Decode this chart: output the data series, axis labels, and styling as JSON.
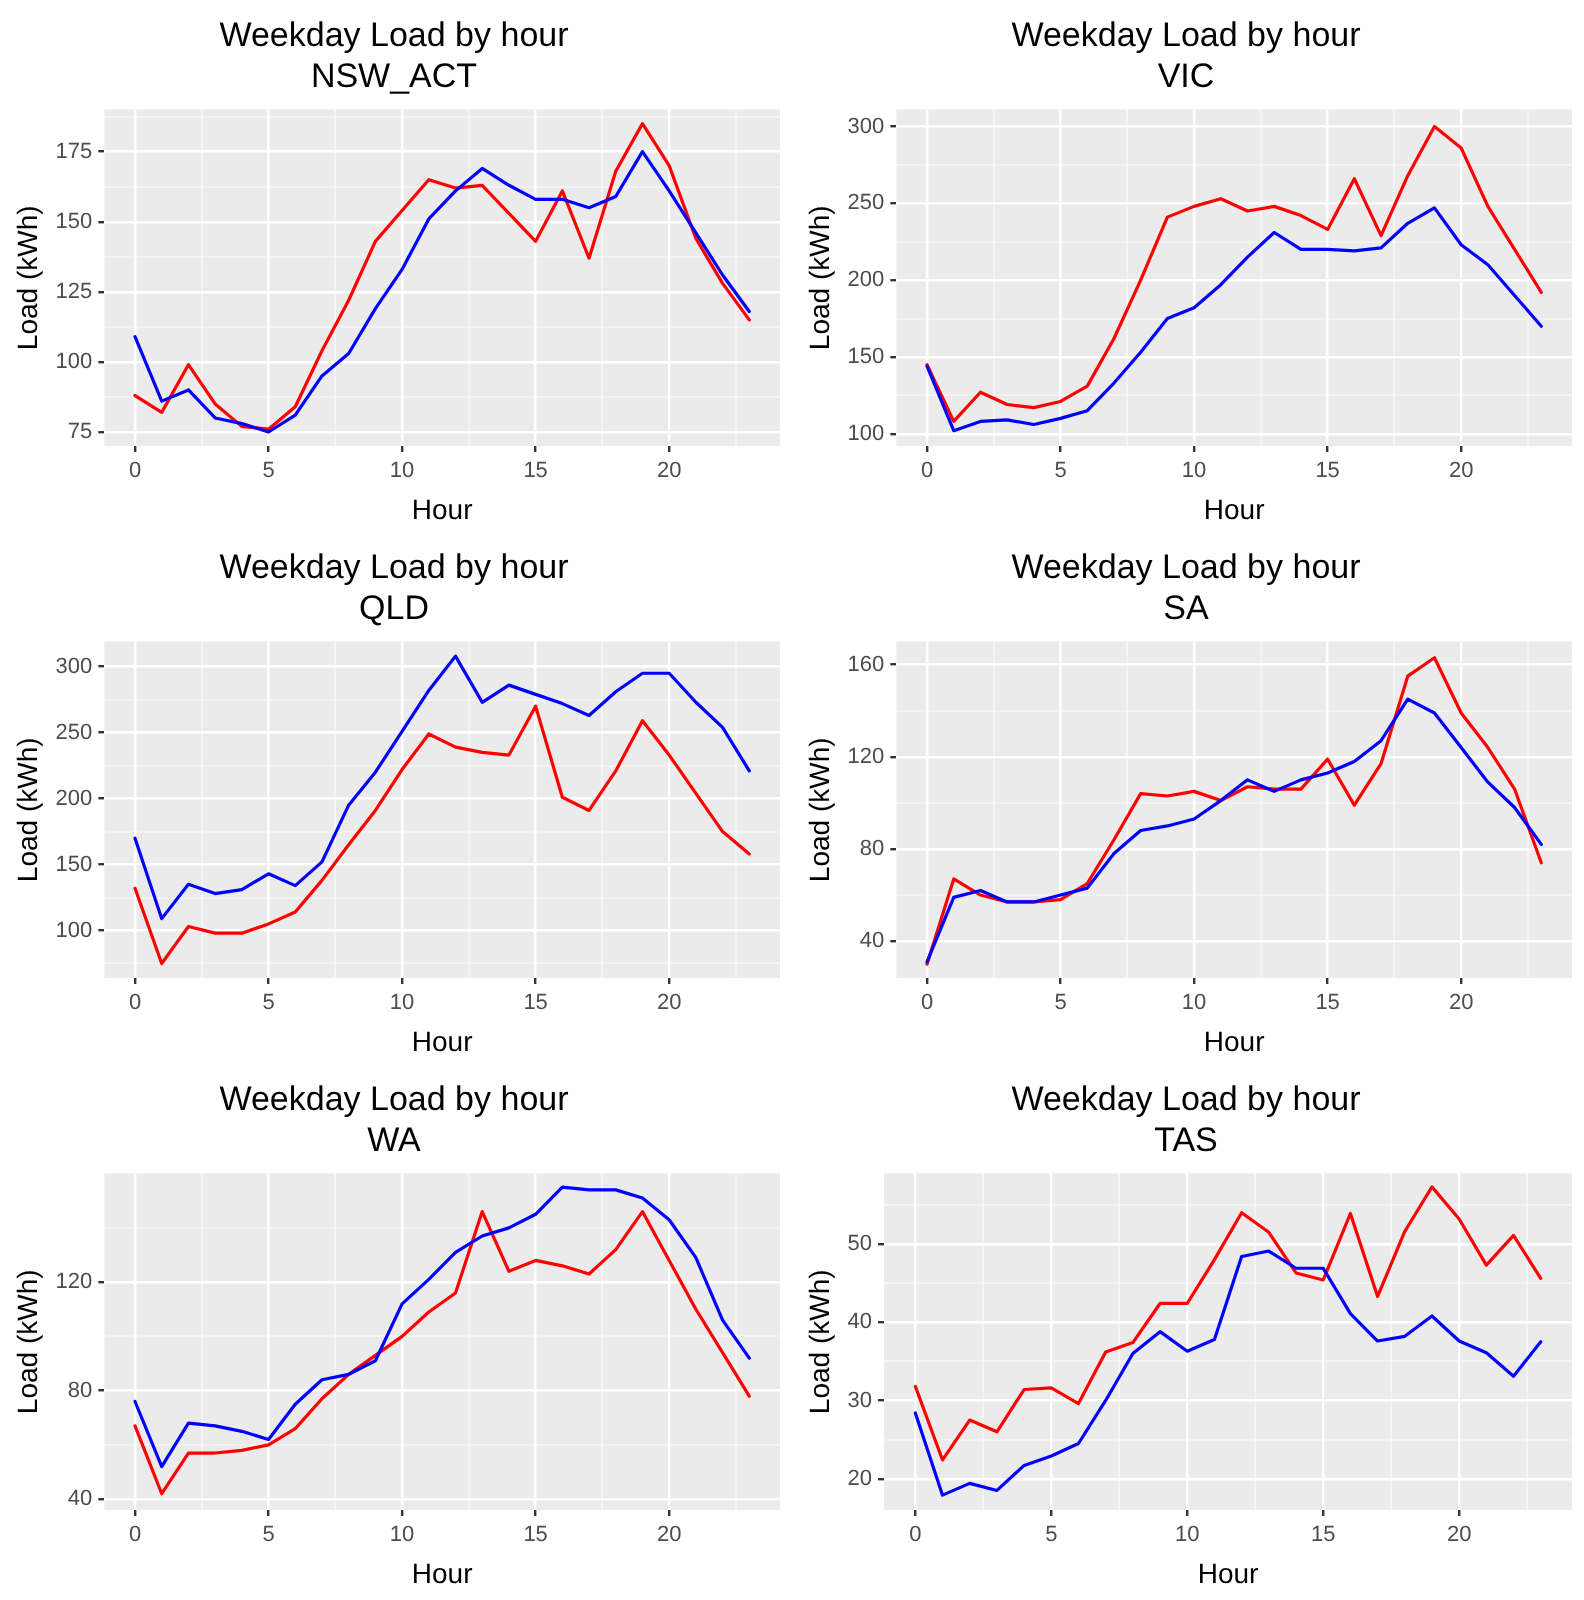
{
  "chart_data": [
    {
      "type": "line",
      "title": "Weekday Load by hour",
      "subtitle": "NSW_ACT",
      "xlabel": "Hour",
      "ylabel": "Load (kWh)",
      "grid": true,
      "legend": false,
      "x": [
        0,
        1,
        2,
        3,
        4,
        5,
        6,
        7,
        8,
        9,
        10,
        11,
        12,
        13,
        14,
        15,
        16,
        17,
        18,
        19,
        20,
        21,
        22,
        23
      ],
      "xlim": [
        -1.15,
        24.15
      ],
      "xticks": [
        0,
        {
          "value": 2.5,
          "label": null
        },
        5,
        {
          "value": 7.5,
          "label": null
        },
        10,
        {
          "value": 12.5,
          "label": null
        },
        15,
        {
          "value": 17.5,
          "label": null
        },
        20,
        {
          "value": 22.5,
          "label": null
        }
      ],
      "ylim": [
        70,
        190
      ],
      "yticks": [
        75,
        {
          "value": 87.5,
          "label": null
        },
        100,
        {
          "value": 112.5,
          "label": null
        },
        125,
        {
          "value": 137.5,
          "label": null
        },
        150,
        {
          "value": 162.5,
          "label": null
        },
        175,
        {
          "value": 187.5,
          "label": null
        }
      ],
      "series": [
        {
          "color": "#0000ff",
          "values": [
            109,
            86,
            90,
            80,
            78,
            75,
            81,
            95,
            103,
            119,
            133,
            151,
            161,
            169,
            163,
            158,
            158,
            155,
            159,
            175,
            161,
            146,
            131,
            118
          ]
        },
        {
          "color": "#ff0000",
          "values": [
            88,
            82,
            99,
            85,
            77,
            76,
            84,
            104,
            122,
            143,
            154,
            165,
            162,
            163,
            153,
            143,
            161,
            137,
            168,
            185,
            170,
            144,
            128,
            115
          ]
        }
      ]
    },
    {
      "type": "line",
      "title": "Weekday Load by hour",
      "subtitle": "VIC",
      "xlabel": "Hour",
      "ylabel": "Load (kWh)",
      "grid": true,
      "legend": false,
      "x": [
        0,
        1,
        2,
        3,
        4,
        5,
        6,
        7,
        8,
        9,
        10,
        11,
        12,
        13,
        14,
        15,
        16,
        17,
        18,
        19,
        20,
        21,
        22,
        23
      ],
      "xlim": [
        -1.15,
        24.15
      ],
      "xticks": [
        0,
        {
          "value": 2.5,
          "label": null
        },
        5,
        {
          "value": 7.5,
          "label": null
        },
        10,
        {
          "value": 12.5,
          "label": null
        },
        15,
        {
          "value": 17.5,
          "label": null
        },
        20,
        {
          "value": 22.5,
          "label": null
        }
      ],
      "ylim": [
        92,
        311
      ],
      "yticks": [
        100,
        {
          "value": 125,
          "label": null
        },
        150,
        {
          "value": 175,
          "label": null
        },
        200,
        {
          "value": 225,
          "label": null
        },
        250,
        {
          "value": 275,
          "label": null
        },
        300
      ],
      "series": [
        {
          "color": "#0000ff",
          "values": [
            144,
            102,
            108,
            109,
            106,
            110,
            115,
            133,
            153,
            175,
            182,
            197,
            215,
            231,
            220,
            220,
            219,
            221,
            237,
            247,
            223,
            210,
            190,
            170
          ]
        },
        {
          "color": "#ff0000",
          "values": [
            145,
            108,
            127,
            119,
            117,
            121,
            131,
            162,
            200,
            241,
            248,
            253,
            245,
            248,
            242,
            233,
            266,
            229,
            268,
            300,
            286,
            248,
            220,
            192
          ]
        }
      ]
    },
    {
      "type": "line",
      "title": "Weekday Load by hour",
      "subtitle": "QLD",
      "xlabel": "Hour",
      "ylabel": "Load (kWh)",
      "grid": true,
      "legend": false,
      "x": [
        0,
        1,
        2,
        3,
        4,
        5,
        6,
        7,
        8,
        9,
        10,
        11,
        12,
        13,
        14,
        15,
        16,
        17,
        18,
        19,
        20,
        21,
        22,
        23
      ],
      "xlim": [
        -1.15,
        24.15
      ],
      "xticks": [
        0,
        {
          "value": 2.5,
          "label": null
        },
        5,
        {
          "value": 7.5,
          "label": null
        },
        10,
        {
          "value": 12.5,
          "label": null
        },
        15,
        {
          "value": 17.5,
          "label": null
        },
        20,
        {
          "value": 22.5,
          "label": null
        }
      ],
      "ylim": [
        64,
        319
      ],
      "yticks": [
        {
          "value": 75,
          "label": null
        },
        100,
        {
          "value": 125,
          "label": null
        },
        150,
        {
          "value": 175,
          "label": null
        },
        200,
        {
          "value": 225,
          "label": null
        },
        250,
        {
          "value": 275,
          "label": null
        },
        300
      ],
      "series": [
        {
          "color": "#0000ff",
          "values": [
            170,
            109,
            135,
            128,
            131,
            143,
            134,
            152,
            195,
            220,
            251,
            282,
            308,
            273,
            286,
            279,
            272,
            263,
            281,
            295,
            295,
            273,
            254,
            221
          ]
        },
        {
          "color": "#ff0000",
          "values": [
            132,
            75,
            103,
            98,
            98,
            105,
            114,
            138,
            165,
            191,
            222,
            249,
            239,
            235,
            233,
            270,
            201,
            191,
            221,
            259,
            233,
            204,
            175,
            158
          ]
        }
      ]
    },
    {
      "type": "line",
      "title": "Weekday Load by hour",
      "subtitle": "SA",
      "xlabel": "Hour",
      "ylabel": "Load (kWh)",
      "grid": true,
      "legend": false,
      "x": [
        0,
        1,
        2,
        3,
        4,
        5,
        6,
        7,
        8,
        9,
        10,
        11,
        12,
        13,
        14,
        15,
        16,
        17,
        18,
        19,
        20,
        21,
        22,
        23
      ],
      "xlim": [
        -1.15,
        24.15
      ],
      "xticks": [
        0,
        {
          "value": 2.5,
          "label": null
        },
        5,
        {
          "value": 7.5,
          "label": null
        },
        10,
        {
          "value": 12.5,
          "label": null
        },
        15,
        {
          "value": 17.5,
          "label": null
        },
        20,
        {
          "value": 22.5,
          "label": null
        }
      ],
      "ylim": [
        24,
        170
      ],
      "yticks": [
        40,
        {
          "value": 60,
          "label": null
        },
        80,
        {
          "value": 100,
          "label": null
        },
        120,
        {
          "value": 140,
          "label": null
        },
        160
      ],
      "series": [
        {
          "color": "#0000ff",
          "values": [
            31,
            59,
            62,
            57,
            57,
            60,
            63,
            78,
            88,
            90,
            93,
            101,
            110,
            105,
            110,
            113,
            118,
            127,
            145,
            139,
            124,
            109,
            98,
            82
          ]
        },
        {
          "color": "#ff0000",
          "values": [
            30,
            67,
            60,
            57,
            57,
            58,
            65,
            84,
            104,
            103,
            105,
            101,
            107,
            106,
            106,
            119,
            99,
            117,
            155,
            163,
            139,
            124,
            106,
            74
          ]
        }
      ]
    },
    {
      "type": "line",
      "title": "Weekday Load by hour",
      "subtitle": "WA",
      "xlabel": "Hour",
      "ylabel": "Load (kWh)",
      "grid": true,
      "legend": false,
      "x": [
        0,
        1,
        2,
        3,
        4,
        5,
        6,
        7,
        8,
        9,
        10,
        11,
        12,
        13,
        14,
        15,
        16,
        17,
        18,
        19,
        20,
        21,
        22,
        23
      ],
      "xlim": [
        -1.15,
        24.15
      ],
      "xticks": [
        0,
        {
          "value": 2.5,
          "label": null
        },
        5,
        {
          "value": 7.5,
          "label": null
        },
        10,
        {
          "value": 12.5,
          "label": null
        },
        15,
        {
          "value": 17.5,
          "label": null
        },
        20,
        {
          "value": 22.5,
          "label": null
        }
      ],
      "ylim": [
        36,
        160
      ],
      "yticks": [
        40,
        {
          "value": 60,
          "label": null
        },
        80,
        {
          "value": 100,
          "label": null
        },
        120,
        {
          "value": 140,
          "label": null
        }
      ],
      "series": [
        {
          "color": "#0000ff",
          "values": [
            76,
            52,
            68,
            67,
            65,
            62,
            75,
            84,
            86,
            91,
            112,
            121,
            131,
            137,
            140,
            145,
            155,
            154,
            154,
            151,
            143,
            129,
            106,
            92
          ]
        },
        {
          "color": "#ff0000",
          "values": [
            67,
            42,
            57,
            57,
            58,
            60,
            66,
            77,
            86,
            93,
            100,
            109,
            116,
            146,
            124,
            128,
            126,
            123,
            132,
            146,
            128,
            110,
            94,
            78
          ]
        }
      ]
    },
    {
      "type": "line",
      "title": "Weekday Load by hour",
      "subtitle": "TAS",
      "xlabel": "Hour",
      "ylabel": "Load (kWh)",
      "grid": true,
      "legend": false,
      "x": [
        0,
        1,
        2,
        3,
        4,
        5,
        6,
        7,
        8,
        9,
        10,
        11,
        12,
        13,
        14,
        15,
        16,
        17,
        18,
        19,
        20,
        21,
        22,
        23
      ],
      "xlim": [
        -1.15,
        24.15
      ],
      "xticks": [
        0,
        {
          "value": 2.5,
          "label": null
        },
        5,
        {
          "value": 7.5,
          "label": null
        },
        10,
        {
          "value": 12.5,
          "label": null
        },
        15,
        {
          "value": 17.5,
          "label": null
        },
        20,
        {
          "value": 22.5,
          "label": null
        }
      ],
      "ylim": [
        16,
        59
      ],
      "yticks": [
        20,
        {
          "value": 25,
          "label": null
        },
        30,
        {
          "value": 35,
          "label": null
        },
        40,
        {
          "value": 45,
          "label": null
        },
        50,
        {
          "value": 55,
          "label": null
        }
      ],
      "series": [
        {
          "color": "#0000ff",
          "values": [
            28.4,
            17.9,
            19.4,
            18.5,
            21.7,
            22.9,
            24.5,
            30,
            36,
            38.8,
            36.3,
            37.8,
            48.4,
            49.1,
            46.9,
            46.9,
            41.1,
            37.6,
            38.2,
            40.8,
            37.6,
            36.1,
            33.1,
            37.5
          ]
        },
        {
          "color": "#ff0000",
          "values": [
            31.8,
            22.4,
            27.5,
            26,
            31.4,
            31.6,
            29.6,
            36.2,
            37.4,
            42.4,
            42.4,
            48,
            54,
            51.5,
            46.3,
            45.4,
            53.9,
            43.3,
            51.6,
            57.3,
            53.2,
            47.3,
            51.1,
            45.6
          ]
        }
      ]
    }
  ]
}
